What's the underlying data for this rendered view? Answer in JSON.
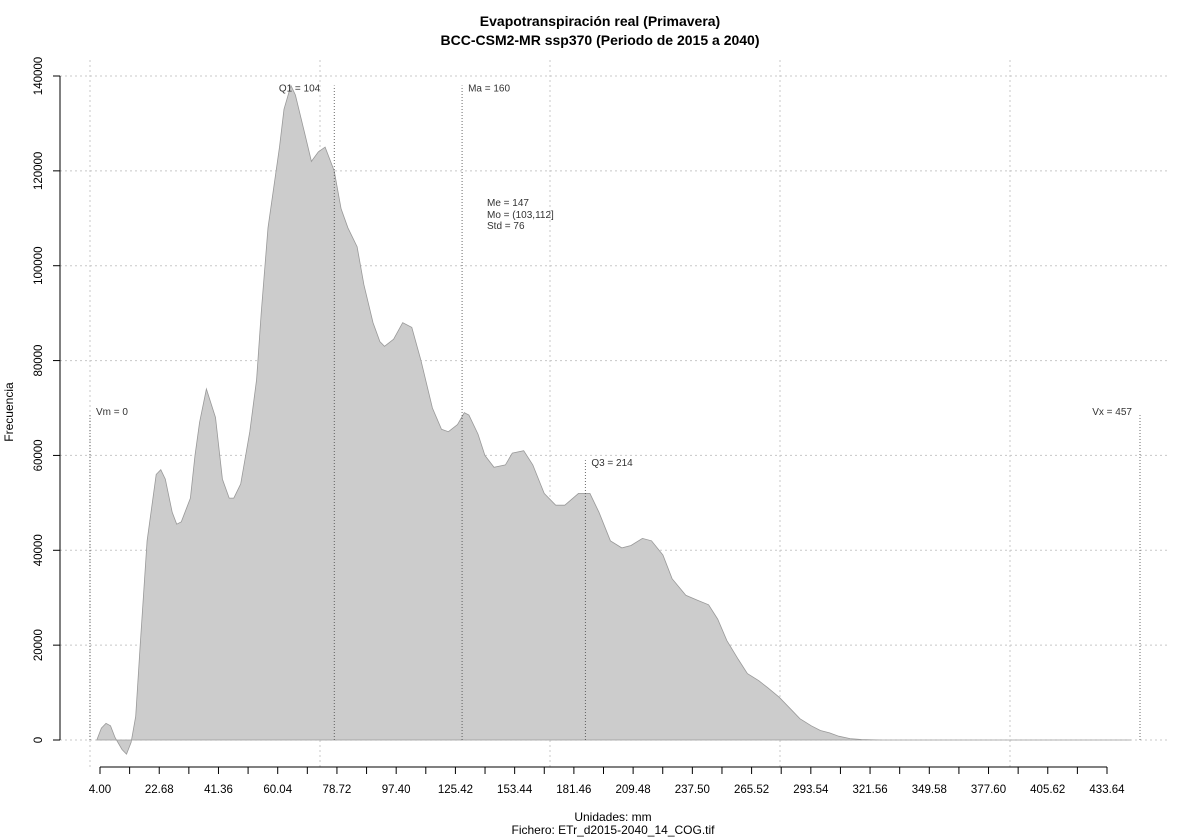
{
  "chart_data": {
    "type": "area",
    "title": "Evapotranspiración real (Primavera)",
    "subtitle": "BCC-CSM2-MR ssp370 (Periodo de 2015 a 2040)",
    "xlabel": "Unidades: mm",
    "ylabel": "Frecuencia",
    "caption": "Fichero: ETr_d2015-2040_14_COG.tif",
    "xlim": [
      -3,
      457
    ],
    "ylim": [
      0,
      140000
    ],
    "grid": true,
    "x_ticks": [
      "4.00",
      "22.68",
      "41.36",
      "60.04",
      "78.72",
      "97.40",
      "125.42",
      "153.44",
      "181.46",
      "209.48",
      "237.50",
      "265.52",
      "293.54",
      "321.56",
      "349.58",
      "377.60",
      "405.62",
      "433.64"
    ],
    "y_ticks": [
      "0",
      "20000",
      "40000",
      "60000",
      "80000",
      "100000",
      "120000",
      "140000"
    ],
    "x": [
      0,
      2,
      4,
      6,
      8,
      11,
      13,
      15,
      17,
      19,
      22,
      26,
      28,
      30,
      33,
      35,
      37,
      41,
      43,
      45,
      48,
      52,
      55,
      58,
      60,
      63,
      67,
      70,
      72,
      75,
      80,
      82,
      85,
      87,
      91,
      94,
      97,
      100,
      104,
      107,
      110,
      114,
      117,
      121,
      124,
      126,
      130,
      134,
      138,
      142,
      147,
      151,
      154,
      158,
      161,
      163,
      167,
      170,
      174,
      179,
      182,
      187,
      191,
      196,
      201,
      205,
      211,
      216,
      220,
      225,
      230,
      234,
      239,
      243,
      248,
      252,
      258,
      263,
      268,
      272,
      276,
      281,
      285,
      290,
      294,
      299,
      304,
      308,
      313,
      317,
      321,
      325,
      330,
      335,
      339,
      344,
      348,
      353,
      359,
      366,
      373,
      380,
      388,
      400,
      415,
      430,
      445,
      453
    ],
    "y": [
      0,
      2500,
      3500,
      3000,
      500,
      -2000,
      -3000,
      -500,
      5000,
      20000,
      42000,
      56000,
      57000,
      55000,
      48000,
      45500,
      46000,
      51000,
      60000,
      67000,
      74000,
      68000,
      55000,
      51000,
      51000,
      54000,
      65000,
      76000,
      90000,
      108000,
      125000,
      133000,
      138000,
      136000,
      128000,
      122000,
      124000,
      125000,
      120000,
      112000,
      108000,
      104000,
      96000,
      88000,
      84000,
      83000,
      84500,
      88000,
      87000,
      80000,
      70000,
      65500,
      65000,
      66500,
      69000,
      68500,
      64500,
      60000,
      57500,
      58000,
      60500,
      61000,
      58000,
      52000,
      49500,
      49500,
      52000,
      52000,
      48000,
      42000,
      40500,
      41000,
      42500,
      42000,
      39000,
      34000,
      30500,
      29500,
      28500,
      25500,
      21000,
      17000,
      14000,
      12500,
      11000,
      9000,
      6500,
      4500,
      3000,
      2000,
      1500,
      800,
      300,
      100,
      50,
      0,
      0,
      0,
      0,
      0,
      0,
      0,
      0,
      0,
      0,
      0,
      0,
      0
    ],
    "reference_lines": [
      {
        "label": "Vm = 0",
        "x": -3,
        "y_top": 68500
      },
      {
        "label": "Q1 = 104",
        "x": 104,
        "y_top": 138000
      },
      {
        "label": "Ma = 160",
        "x": 160,
        "y_top": 138000
      },
      {
        "label": "Q3 = 214",
        "x": 214,
        "y_top": 59000
      },
      {
        "label": "Vx = 457",
        "x": 457,
        "y_top": 68500
      }
    ],
    "stats_box": [
      "Me = 147",
      "Mo = (103,112]",
      "Std = 76"
    ],
    "fill_color": "#cccccc",
    "line_color": "#999999"
  }
}
